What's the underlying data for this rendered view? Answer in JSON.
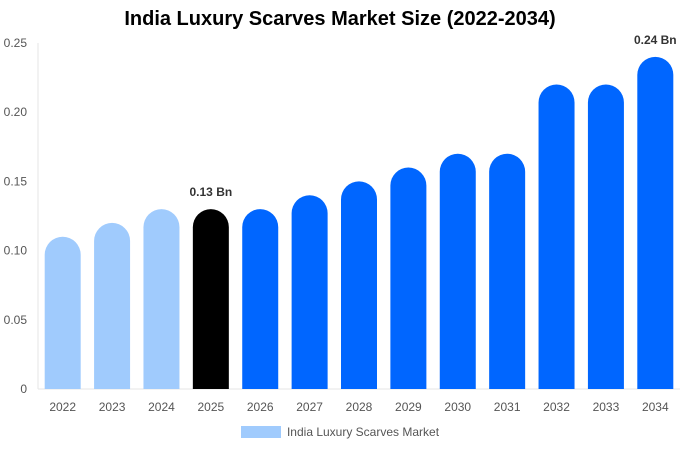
{
  "chart_data": {
    "type": "bar",
    "title": "India Luxury Scarves Market Size (2022-2034)",
    "categories": [
      "2022",
      "2023",
      "2024",
      "2025",
      "2026",
      "2027",
      "2028",
      "2029",
      "2030",
      "2031",
      "2032",
      "2033",
      "2034"
    ],
    "series": [
      {
        "name": "India Luxury Scarves Market",
        "values": [
          0.11,
          0.12,
          0.13,
          0.13,
          0.13,
          0.14,
          0.15,
          0.16,
          0.17,
          0.17,
          0.22,
          0.22,
          0.24
        ]
      }
    ],
    "ylim": [
      0,
      0.25
    ],
    "yticks": [
      "0",
      "0.05",
      "0.10",
      "0.15",
      "0.20",
      "0.25"
    ],
    "annotations": [
      {
        "category": "2025",
        "label": "0.13 Bn"
      },
      {
        "category": "2034",
        "label": "0.24 Bn"
      }
    ],
    "colors": {
      "historical": "#a0cbfd",
      "current": "#000000",
      "forecast": "#0066ff"
    },
    "grid": false,
    "legend": "bottom"
  }
}
